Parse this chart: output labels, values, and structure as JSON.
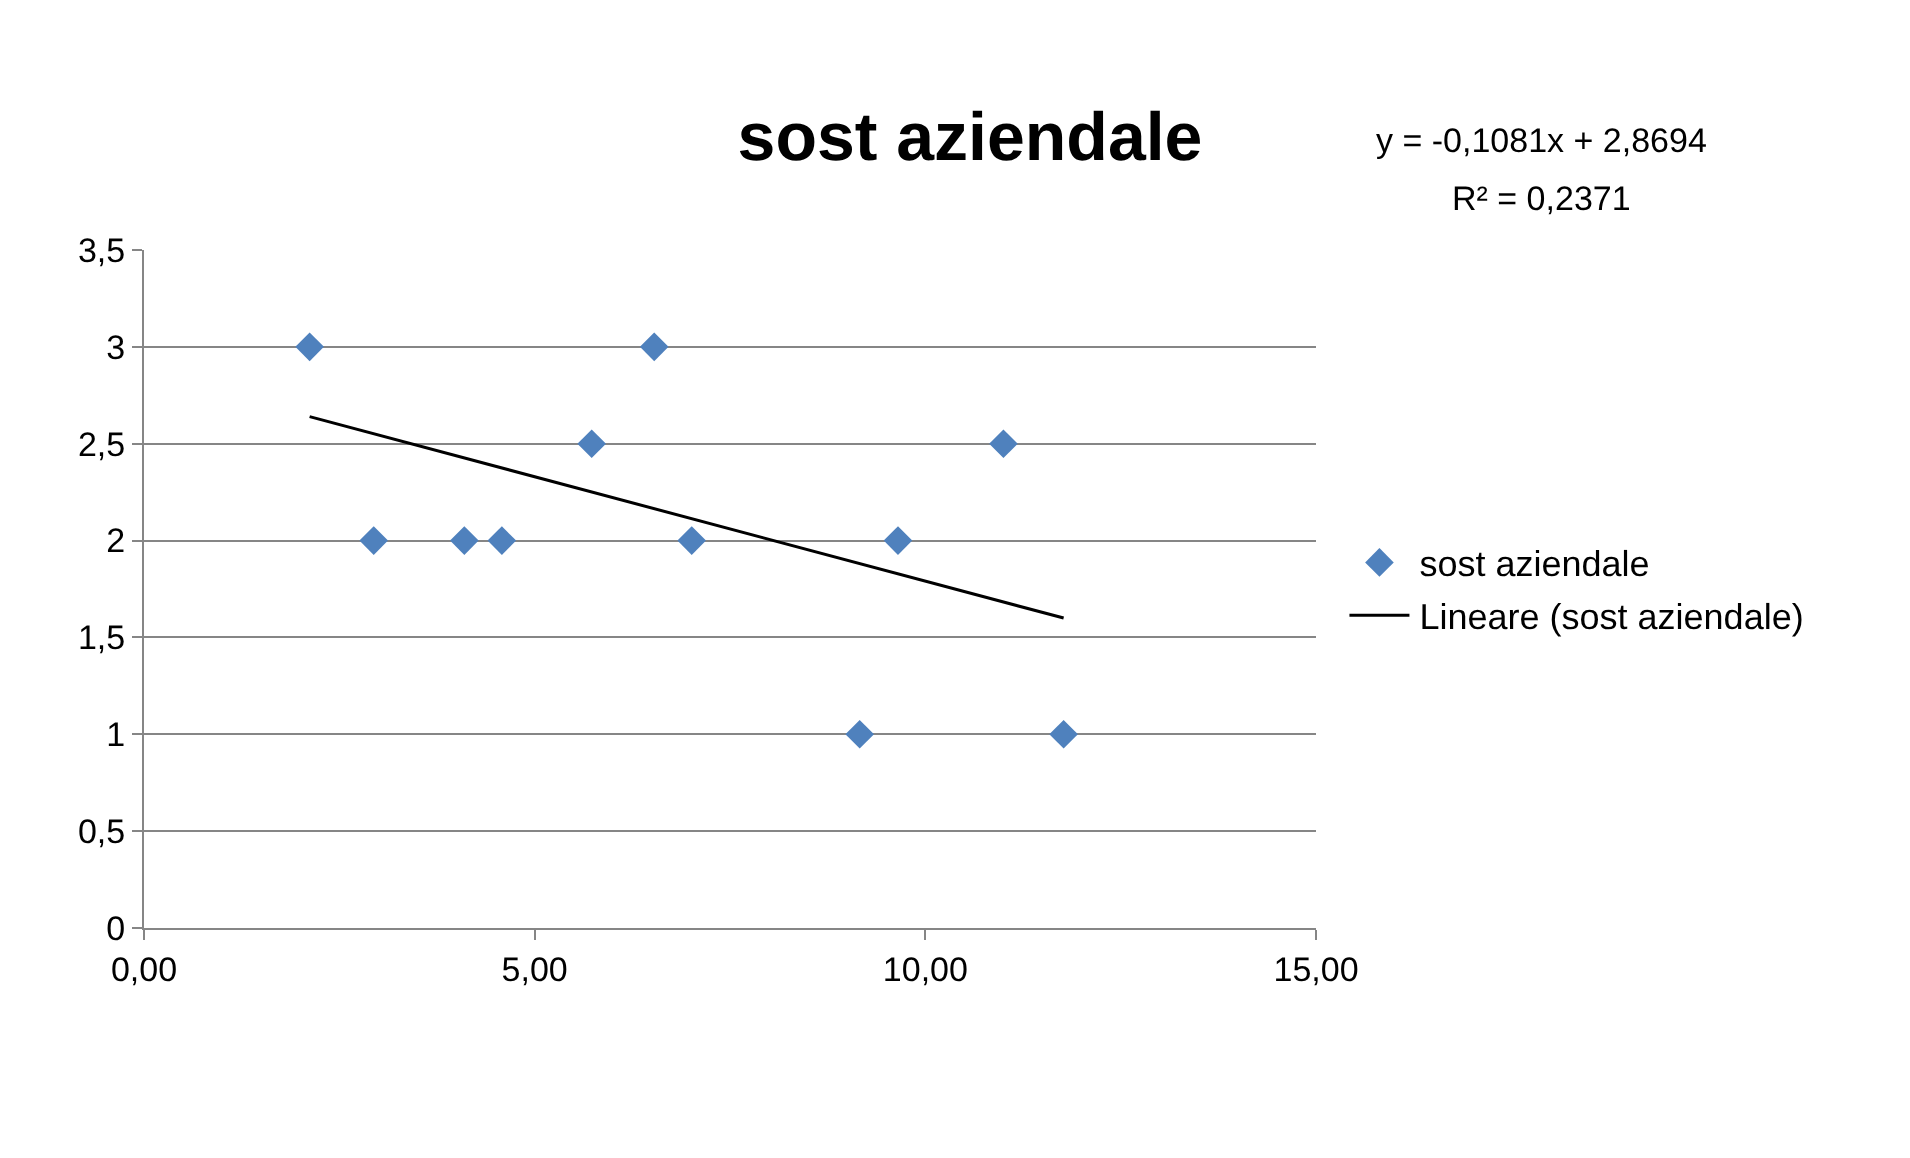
{
  "chart_data": {
    "type": "scatter",
    "title": "sost aziendale",
    "series": [
      {
        "name": "sost aziendale",
        "marker": "diamond",
        "color": "#4f81bd",
        "x": [
          2.12,
          2.94,
          4.1,
          4.58,
          5.73,
          6.53,
          7.01,
          9.16,
          9.65,
          11.0,
          11.77
        ],
        "values": [
          3,
          2,
          2,
          2,
          2.5,
          3,
          2,
          1,
          2,
          2.5,
          1
        ]
      },
      {
        "name": "Lineare (sost aziendale)",
        "type": "line",
        "marker": "none",
        "line_style": "solid",
        "color": "#000000",
        "x": [
          2.12,
          11.77
        ],
        "values": [
          2.64,
          1.6
        ]
      }
    ],
    "annotations": [
      "y = -0,1081x + 2,8694",
      "R² = 0,2371"
    ],
    "xlim": [
      0,
      15
    ],
    "xticks": [
      {
        "value": 0,
        "label": "0,00"
      },
      {
        "value": 5,
        "label": "5,00"
      },
      {
        "value": 10,
        "label": "10,00"
      },
      {
        "value": 15,
        "label": "15,00"
      }
    ],
    "ylim": [
      0,
      3.5
    ],
    "yticks": [
      0,
      {
        "value": 0.5,
        "label": "0,5"
      },
      1,
      {
        "value": 1.5,
        "label": "1,5"
      },
      2,
      {
        "value": 2.5,
        "label": "2,5"
      },
      3,
      {
        "value": 3.5,
        "label": "3,5"
      }
    ],
    "grid": "y",
    "legend": "right"
  }
}
